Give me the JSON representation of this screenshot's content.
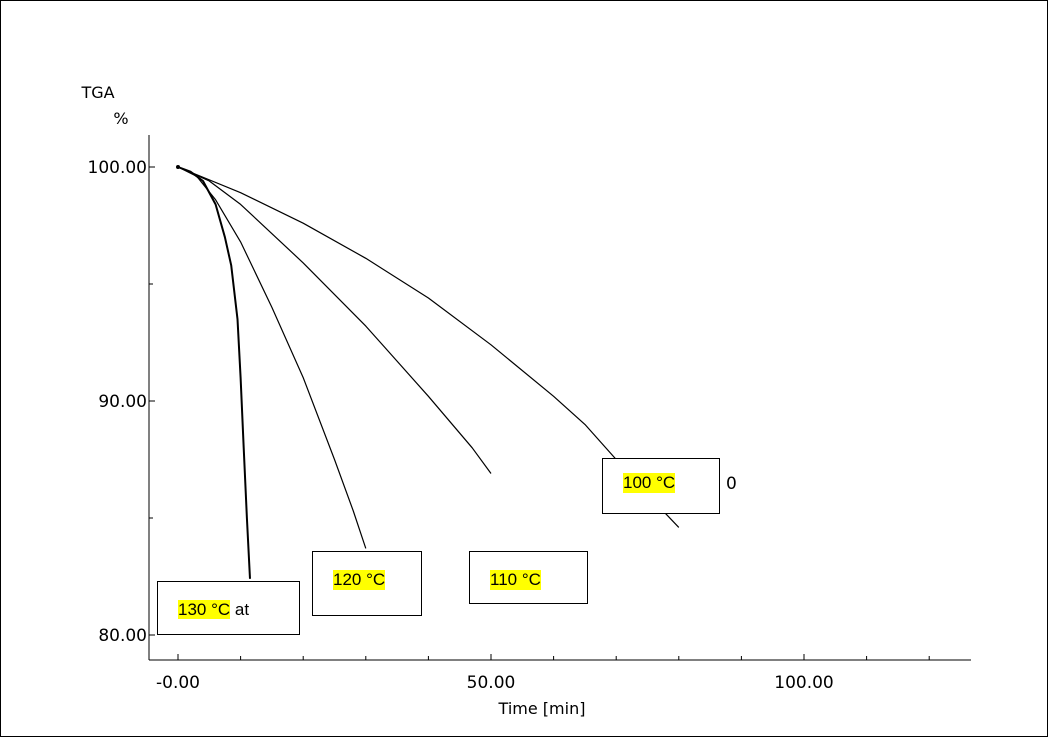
{
  "chart_data": {
    "type": "line",
    "title": "",
    "ylabel_line1": "TGA",
    "ylabel_line2": "%",
    "xlabel": "Time  [min]",
    "xlim": [
      -5,
      127
    ],
    "ylim": [
      79.2,
      101.2
    ],
    "x_ticks": [
      {
        "value": 0,
        "label": "-0.00"
      },
      {
        "value": 50,
        "label": "50.00"
      },
      {
        "value": 100,
        "label": "100.00"
      }
    ],
    "y_ticks": [
      {
        "value": 80,
        "label": "80.00"
      },
      {
        "value": 90,
        "label": "90.00"
      },
      {
        "value": 100,
        "label": "100.00"
      }
    ],
    "x_minor_step": 10,
    "y_minor_step": 5,
    "grid": false,
    "series": [
      {
        "name": "130 °C",
        "x": [
          0,
          2,
          4,
          6,
          7.5,
          8.5,
          9.5,
          10,
          10.5,
          11,
          11.5
        ],
        "y": [
          100.0,
          99.8,
          99.4,
          98.4,
          97.0,
          95.8,
          93.5,
          91.0,
          88.0,
          85.0,
          82.4
        ]
      },
      {
        "name": "120 °C",
        "x": [
          0,
          3,
          6,
          10,
          15,
          20,
          25,
          28,
          30
        ],
        "y": [
          100.0,
          99.6,
          98.6,
          96.8,
          94.0,
          91.0,
          87.5,
          85.3,
          83.7
        ]
      },
      {
        "name": "110 °C",
        "x": [
          0,
          5,
          10,
          20,
          30,
          40,
          47,
          50
        ],
        "y": [
          100.0,
          99.4,
          98.4,
          95.9,
          93.2,
          90.2,
          88.0,
          86.9
        ]
      },
      {
        "name": "100 °C",
        "x": [
          0,
          10,
          20,
          30,
          40,
          50,
          60,
          65,
          70,
          75,
          80
        ],
        "y": [
          100.0,
          98.9,
          97.6,
          96.1,
          94.4,
          92.4,
          90.2,
          89.0,
          87.5,
          86.0,
          84.6
        ]
      }
    ]
  },
  "annotations": {
    "c130": {
      "label": "130 °C",
      "suffix": " at"
    },
    "c120": {
      "label": "120 °C"
    },
    "c110": {
      "label": "110 °C"
    },
    "c100": {
      "label": "100 °C",
      "outside": "0"
    }
  }
}
